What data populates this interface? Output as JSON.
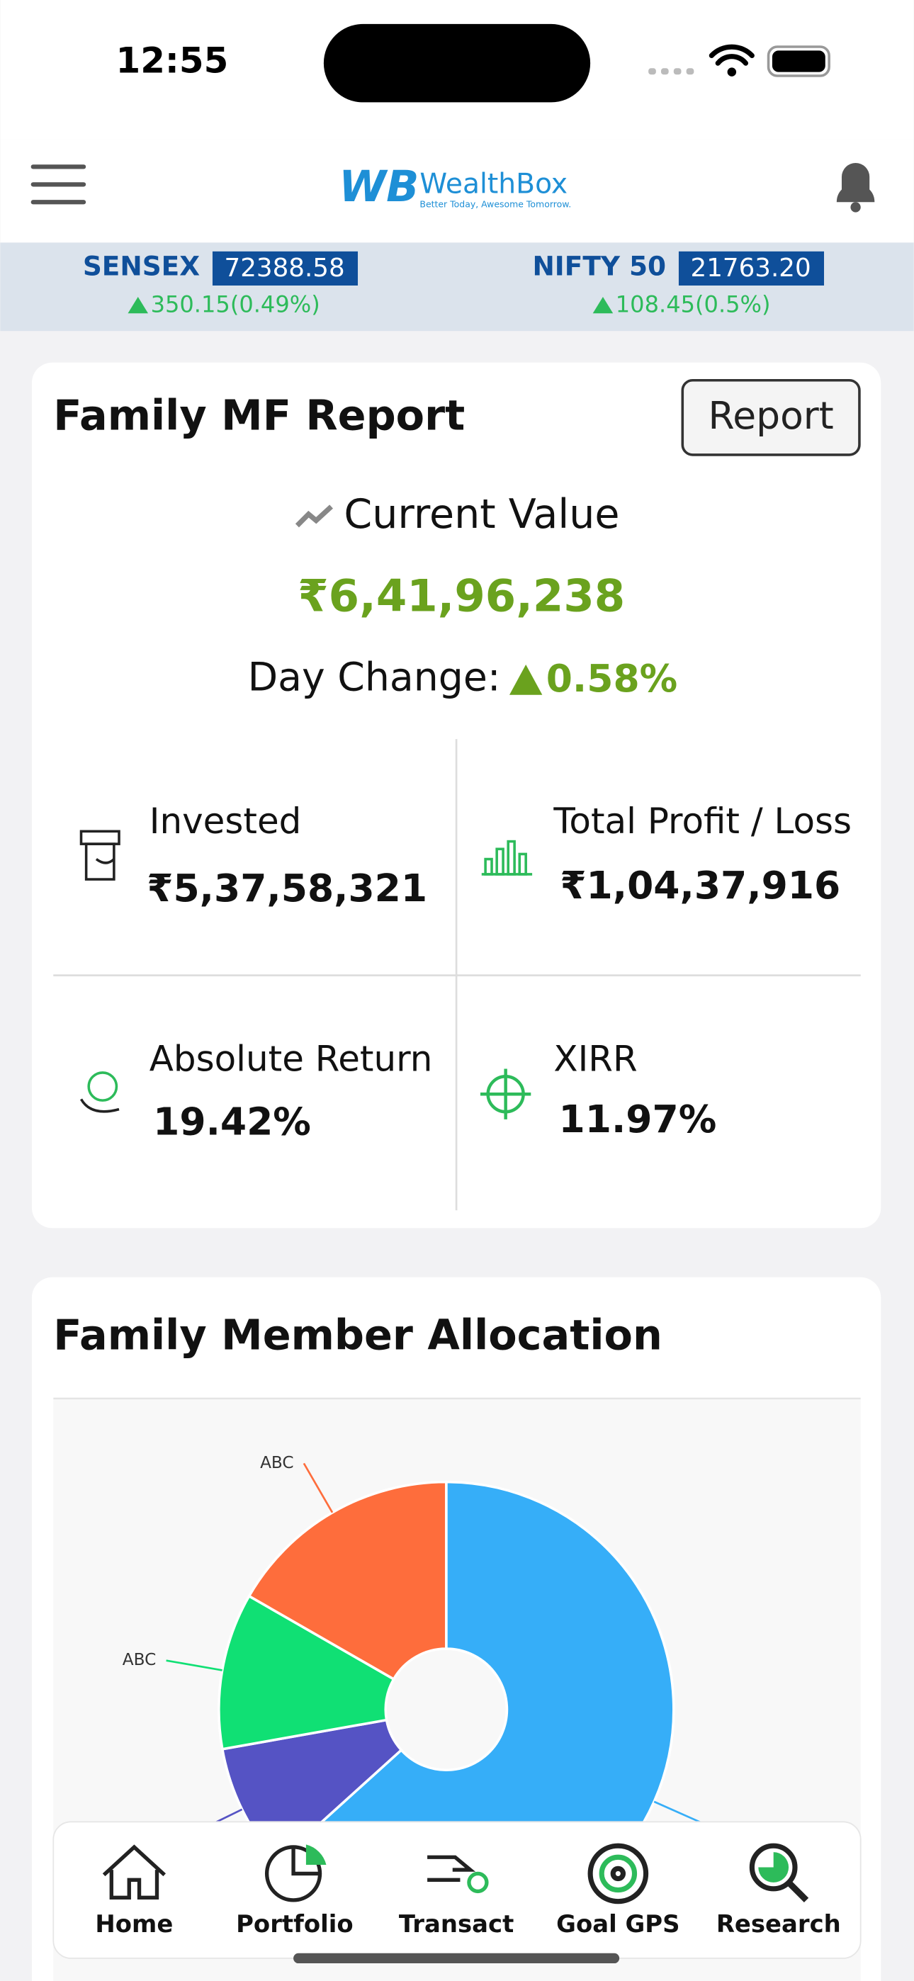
{
  "status_bar": {
    "time": "12:55"
  },
  "header": {
    "brand": "WealthBox",
    "tagline": "Better Today, Awesome Tomorrow."
  },
  "ticker": [
    {
      "name": "SENSEX",
      "value": "72388.58",
      "change": "350.15(0.49%)"
    },
    {
      "name": "NIFTY 50",
      "value": "21763.20",
      "change": "108.45(0.5%)"
    }
  ],
  "report_card": {
    "title": "Family MF Report",
    "button": "Report",
    "current_value_label": "Current Value",
    "current_value": "₹6,41,96,238",
    "day_change_label": "Day Change:",
    "day_change": "0.58%",
    "stats": [
      {
        "label": "Invested",
        "value": "₹5,37,58,321"
      },
      {
        "label": "Total Profit / Loss",
        "value": "₹1,04,37,916"
      },
      {
        "label": "Absolute Return",
        "value": "19.42%"
      },
      {
        "label": "XIRR",
        "value": "11.97%"
      }
    ]
  },
  "allocation_card": {
    "title": "Family Member Allocation",
    "chart_data": {
      "type": "pie",
      "categories": [
        null,
        null,
        "ABC",
        "ABC"
      ],
      "values": [
        63.3,
        8.9,
        11.1,
        16.7
      ],
      "colors": [
        "#36aef8",
        "#5553c4",
        "#10e074",
        "#fe6d3c"
      ]
    }
  },
  "bottom_nav": {
    "items": [
      "Home",
      "Portfolio",
      "Transact",
      "Goal GPS",
      "Research"
    ]
  }
}
